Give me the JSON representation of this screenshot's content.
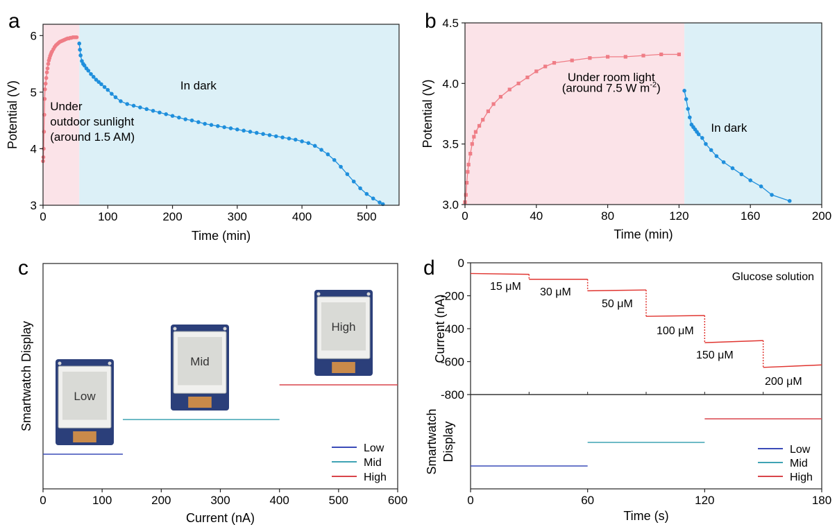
{
  "colors": {
    "light_region": "#fbe3e8",
    "dark_region": "#dcf0f7",
    "light_series": "#ef7d86",
    "dark_series": "#1f8fdc",
    "low": "#3a4bb8",
    "mid": "#3fa3b4",
    "high": "#d9444a",
    "current": "#e0342f",
    "axis": "#222222"
  },
  "icons": {
    "smartwatch_screen": "epaper-display-module-icon"
  },
  "chart_data": [
    {
      "panel": "a",
      "type": "scatter",
      "xlabel": "Time (min)",
      "ylabel": "Potential (V)",
      "xlim": [
        0,
        550
      ],
      "ylim": [
        3,
        6.2
      ],
      "xticks": [
        0,
        100,
        200,
        300,
        400,
        500
      ],
      "yticks": [
        3,
        4,
        5,
        6
      ],
      "regions": [
        {
          "kind": "light",
          "x": [
            0,
            56
          ]
        },
        {
          "kind": "dark",
          "x": [
            56,
            550
          ]
        }
      ],
      "annotations": [
        {
          "lines": [
            "Under",
            "outdoor sunlight",
            "(around 1.5 AM)"
          ],
          "x": 11,
          "y": 4.68
        },
        {
          "lines": [
            "In dark"
          ],
          "x": 240,
          "y": 5.05
        }
      ],
      "series": [
        {
          "kind": "light",
          "x": [
            0,
            0.5,
            1,
            1.5,
            2,
            2.5,
            3,
            4,
            5,
            6,
            7,
            8,
            9,
            10,
            11,
            12,
            13,
            14,
            16,
            18,
            20,
            22,
            24,
            26,
            28,
            30,
            32,
            34,
            36,
            38,
            40,
            42,
            44,
            46,
            48,
            50,
            52
          ],
          "y": [
            3.78,
            3.85,
            4.0,
            4.3,
            4.6,
            4.88,
            5.05,
            5.15,
            5.25,
            5.35,
            5.42,
            5.5,
            5.56,
            5.6,
            5.64,
            5.67,
            5.7,
            5.72,
            5.76,
            5.8,
            5.83,
            5.85,
            5.87,
            5.89,
            5.9,
            5.91,
            5.92,
            5.93,
            5.94,
            5.95,
            5.95,
            5.96,
            5.96,
            5.97,
            5.97,
            5.97,
            5.97
          ]
        },
        {
          "kind": "dark",
          "x": [
            56,
            57,
            58,
            60,
            62,
            64,
            67,
            70,
            74,
            78,
            82,
            86,
            90,
            95,
            100,
            106,
            112,
            120,
            130,
            140,
            150,
            160,
            170,
            180,
            190,
            200,
            210,
            220,
            230,
            240,
            250,
            260,
            270,
            280,
            290,
            300,
            310,
            320,
            330,
            340,
            350,
            360,
            370,
            380,
            390,
            400,
            410,
            420,
            430,
            440,
            450,
            460,
            470,
            480,
            490,
            500,
            510,
            520,
            525
          ],
          "y": [
            5.86,
            5.75,
            5.65,
            5.55,
            5.5,
            5.47,
            5.42,
            5.38,
            5.32,
            5.27,
            5.22,
            5.18,
            5.14,
            5.09,
            5.04,
            4.97,
            4.91,
            4.84,
            4.79,
            4.76,
            4.73,
            4.7,
            4.67,
            4.64,
            4.61,
            4.58,
            4.55,
            4.52,
            4.5,
            4.47,
            4.44,
            4.42,
            4.4,
            4.38,
            4.36,
            4.34,
            4.32,
            4.3,
            4.28,
            4.26,
            4.24,
            4.22,
            4.2,
            4.18,
            4.16,
            4.13,
            4.1,
            4.05,
            3.98,
            3.9,
            3.8,
            3.68,
            3.55,
            3.42,
            3.3,
            3.2,
            3.12,
            3.05,
            3.02
          ]
        }
      ]
    },
    {
      "panel": "b",
      "type": "line",
      "xlabel": "Time (min)",
      "ylabel": "Potential (V)",
      "xlim": [
        0,
        200
      ],
      "ylim": [
        3.0,
        4.5
      ],
      "xticks": [
        0,
        40,
        80,
        120,
        160,
        200
      ],
      "yticks": [
        3.0,
        3.5,
        4.0,
        4.5
      ],
      "regions": [
        {
          "kind": "light",
          "x": [
            0,
            123
          ]
        },
        {
          "kind": "dark",
          "x": [
            123,
            200
          ]
        }
      ],
      "annotations": [
        {
          "lines": [
            "Under room light"
          ],
          "x": 82,
          "y": 4.02
        },
        {
          "lines": [
            "(around 7.5 W m",
            "-2",
            ")"
          ],
          "x": 82,
          "y": 3.93,
          "superscript": true
        },
        {
          "lines": [
            "In dark"
          ],
          "x": 148,
          "y": 3.6
        }
      ],
      "series": [
        {
          "kind": "light",
          "x": [
            0,
            0.5,
            1,
            1.5,
            2,
            3,
            4,
            5,
            6,
            8,
            10,
            13,
            16,
            20,
            25,
            30,
            35,
            40,
            45,
            50,
            60,
            70,
            80,
            90,
            100,
            110,
            120
          ],
          "y": [
            3.02,
            3.08,
            3.18,
            3.27,
            3.33,
            3.42,
            3.5,
            3.56,
            3.6,
            3.65,
            3.7,
            3.77,
            3.83,
            3.89,
            3.95,
            4.0,
            4.05,
            4.1,
            4.14,
            4.17,
            4.19,
            4.21,
            4.22,
            4.22,
            4.23,
            4.24,
            4.24
          ]
        },
        {
          "kind": "dark",
          "x": [
            123,
            124,
            125,
            126,
            127,
            128,
            129,
            130,
            131,
            133,
            135,
            138,
            141,
            145,
            150,
            155,
            160,
            166,
            172,
            182
          ],
          "y": [
            3.94,
            3.87,
            3.79,
            3.72,
            3.66,
            3.64,
            3.62,
            3.6,
            3.58,
            3.55,
            3.5,
            3.45,
            3.4,
            3.35,
            3.3,
            3.25,
            3.2,
            3.15,
            3.08,
            3.03
          ]
        }
      ]
    },
    {
      "panel": "c",
      "type": "line",
      "xlabel": "Current (nA)",
      "ylabel": "Smartwatch Display",
      "xlim": [
        0,
        600
      ],
      "xticks": [
        0,
        100,
        200,
        300,
        400,
        500,
        600
      ],
      "legend_position": "bottom-right",
      "levels": [
        {
          "name": "Low",
          "x": [
            0,
            135
          ],
          "level": 1,
          "screen_text": "Low"
        },
        {
          "name": "Mid",
          "x": [
            135,
            400
          ],
          "level": 2,
          "screen_text": "Mid"
        },
        {
          "name": "High",
          "x": [
            400,
            600
          ],
          "level": 3,
          "screen_text": "High"
        }
      ]
    },
    {
      "panel": "d",
      "type": "line",
      "xlabel": "Time (s)",
      "ylabel_top": "Current (nA)",
      "ylabel_bottom": "Smartwatch Display",
      "xlim": [
        0,
        180
      ],
      "ylim": [
        -800,
        0
      ],
      "xticks": [
        0,
        60,
        120,
        180
      ],
      "yticks": [
        0,
        -200,
        -400,
        -600,
        -800
      ],
      "note": "Glucose solution",
      "legend_position": "bottom-right",
      "steps": [
        {
          "label": "15 μM",
          "x": [
            0,
            30
          ],
          "y": [
            -65,
            -70
          ]
        },
        {
          "label": "30 μM",
          "x": [
            30,
            60
          ],
          "y": [
            -100,
            -100
          ]
        },
        {
          "label": "50 μM",
          "x": [
            60,
            90
          ],
          "y": [
            -170,
            -165
          ]
        },
        {
          "label": "100 μM",
          "x": [
            90,
            120
          ],
          "y": [
            -325,
            -320
          ]
        },
        {
          "label": "150 μM",
          "x": [
            120,
            150
          ],
          "y": [
            -485,
            -472
          ]
        },
        {
          "label": "200 μM",
          "x": [
            150,
            180
          ],
          "y": [
            -635,
            -620
          ]
        }
      ],
      "levels": [
        {
          "name": "Low",
          "x": [
            0,
            60
          ],
          "level": 1
        },
        {
          "name": "Mid",
          "x": [
            60,
            120
          ],
          "level": 2
        },
        {
          "name": "High",
          "x": [
            120,
            180
          ],
          "level": 3
        }
      ]
    }
  ]
}
